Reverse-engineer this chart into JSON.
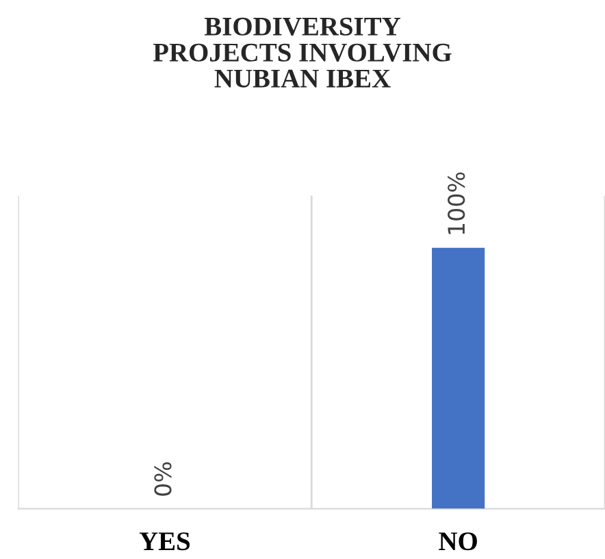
{
  "chart_data": {
    "type": "bar",
    "title": "BIODIVERSITY\nPROJECTS INVOLVING\nNUBIAN IBEX",
    "categories": [
      "YES",
      "NO"
    ],
    "values": [
      0,
      100
    ],
    "color": "#4472c4",
    "value_labels": [
      "0%",
      "100%"
    ],
    "ylim": [
      0,
      120
    ],
    "grid": "x"
  }
}
